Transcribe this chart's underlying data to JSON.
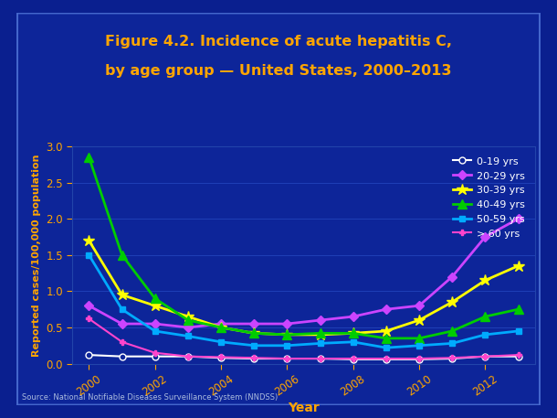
{
  "title_line1": "Figure 4.2. Incidence of acute hepatitis C,",
  "title_line2": "by age group — United States, 2000–2013",
  "xlabel": "Year",
  "ylabel": "Reported cases/100,000 population",
  "source": "Source: National Notifiable Diseases Surveillance System (NNDSS)",
  "outer_bg": "#0a1f8f",
  "inner_bg": "#0d2599",
  "plot_bg_color": "#0d2599",
  "title_color": "#FFA500",
  "axis_label_color": "#FFA500",
  "tick_color": "#FFA500",
  "years": [
    2000,
    2001,
    2002,
    2003,
    2004,
    2005,
    2006,
    2007,
    2008,
    2009,
    2010,
    2011,
    2012,
    2013
  ],
  "series": [
    {
      "label": "0-19 yrs",
      "color": "#ffffff",
      "marker": "o",
      "markerfacecolor": "#0d2599",
      "linewidth": 1.5,
      "markersize": 5,
      "values": [
        0.12,
        0.1,
        0.1,
        0.1,
        0.08,
        0.07,
        0.07,
        0.07,
        0.06,
        0.06,
        0.06,
        0.07,
        0.1,
        0.1
      ]
    },
    {
      "label": "20-29 yrs",
      "color": "#cc44ff",
      "marker": "D",
      "markerfacecolor": "#cc44ff",
      "linewidth": 2,
      "markersize": 5,
      "values": [
        0.8,
        0.55,
        0.55,
        0.5,
        0.55,
        0.55,
        0.55,
        0.6,
        0.65,
        0.75,
        0.8,
        1.2,
        1.75,
        2.0
      ]
    },
    {
      "label": "30-39 yrs",
      "color": "#ffff00",
      "marker": "*",
      "markerfacecolor": "#ffff00",
      "linewidth": 2,
      "markersize": 9,
      "values": [
        1.7,
        0.95,
        0.8,
        0.65,
        0.5,
        0.42,
        0.4,
        0.4,
        0.42,
        0.45,
        0.6,
        0.85,
        1.15,
        1.35
      ]
    },
    {
      "label": "40-49 yrs",
      "color": "#00cc00",
      "marker": "^",
      "markerfacecolor": "#00cc00",
      "linewidth": 2,
      "markersize": 7,
      "values": [
        2.85,
        1.5,
        0.9,
        0.6,
        0.5,
        0.42,
        0.4,
        0.42,
        0.42,
        0.35,
        0.35,
        0.45,
        0.65,
        0.75
      ]
    },
    {
      "label": "50-59 yrs",
      "color": "#00aaff",
      "marker": "s",
      "markerfacecolor": "#00aaff",
      "linewidth": 2,
      "markersize": 5,
      "values": [
        1.5,
        0.75,
        0.45,
        0.38,
        0.3,
        0.25,
        0.25,
        0.28,
        0.3,
        0.22,
        0.25,
        0.28,
        0.4,
        0.45
      ]
    },
    {
      "label": "> 60 yrs",
      "color": "#ff44cc",
      "marker": "P",
      "markerfacecolor": "#ff44cc",
      "linewidth": 1.5,
      "markersize": 5,
      "values": [
        0.62,
        0.3,
        0.15,
        0.1,
        0.09,
        0.08,
        0.07,
        0.07,
        0.07,
        0.07,
        0.07,
        0.08,
        0.1,
        0.12
      ]
    }
  ],
  "ylim": [
    0,
    3
  ],
  "yticks": [
    0,
    0.5,
    1.0,
    1.5,
    2.0,
    2.5,
    3.0
  ],
  "xticks": [
    2000,
    2002,
    2004,
    2006,
    2008,
    2010,
    2012
  ],
  "legend_text_color": "#ffffff",
  "grid_color": "#2244bb",
  "source_color": "#aabbdd"
}
